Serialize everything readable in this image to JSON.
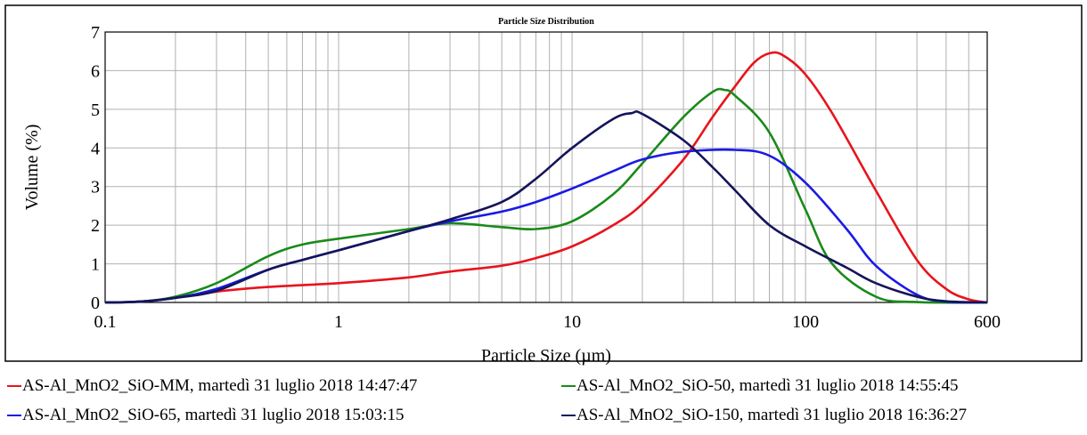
{
  "chart_data": {
    "type": "line",
    "title": "Particle Size Distribution",
    "xlabel": "Particle Size (µm)",
    "ylabel": "Volume (%)",
    "xscale": "log",
    "xlim": [
      0.1,
      600
    ],
    "ylim": [
      0,
      7
    ],
    "x_ticks": [
      0.1,
      1,
      10,
      100,
      600
    ],
    "x_tick_labels": [
      "0.1",
      "1",
      "10",
      "100",
      "600"
    ],
    "y_ticks": [
      0,
      1,
      2,
      3,
      4,
      5,
      6,
      7
    ],
    "y_tick_labels": [
      "0",
      "1",
      "2",
      "3",
      "4",
      "5",
      "6",
      "7"
    ],
    "grid": true,
    "legend_position": "bottom",
    "series": [
      {
        "name": "AS-Al_MnO2_SiO-MM, martedì 31 luglio 2018 14:47:47",
        "color": "#e8141c",
        "points": [
          [
            0.1,
            0
          ],
          [
            0.14,
            0.02
          ],
          [
            0.2,
            0.12
          ],
          [
            0.3,
            0.28
          ],
          [
            0.5,
            0.4
          ],
          [
            1,
            0.5
          ],
          [
            2,
            0.65
          ],
          [
            3,
            0.8
          ],
          [
            5,
            0.95
          ],
          [
            7,
            1.15
          ],
          [
            10,
            1.45
          ],
          [
            15,
            2.0
          ],
          [
            20,
            2.55
          ],
          [
            30,
            3.7
          ],
          [
            40,
            4.8
          ],
          [
            50,
            5.6
          ],
          [
            60,
            6.2
          ],
          [
            70,
            6.45
          ],
          [
            80,
            6.4
          ],
          [
            100,
            5.9
          ],
          [
            130,
            4.9
          ],
          [
            200,
            2.9
          ],
          [
            300,
            1.1
          ],
          [
            400,
            0.35
          ],
          [
            500,
            0.08
          ],
          [
            600,
            0
          ]
        ]
      },
      {
        "name": "AS-Al_MnO2_SiO-50, martedì 31 luglio 2018 14:55:45",
        "color": "#1a8a1a",
        "points": [
          [
            0.1,
            0
          ],
          [
            0.14,
            0.02
          ],
          [
            0.2,
            0.15
          ],
          [
            0.3,
            0.5
          ],
          [
            0.5,
            1.2
          ],
          [
            0.7,
            1.5
          ],
          [
            1,
            1.65
          ],
          [
            2,
            1.9
          ],
          [
            3,
            2.05
          ],
          [
            5,
            1.95
          ],
          [
            7,
            1.9
          ],
          [
            10,
            2.1
          ],
          [
            15,
            2.8
          ],
          [
            20,
            3.6
          ],
          [
            30,
            4.8
          ],
          [
            40,
            5.45
          ],
          [
            45,
            5.5
          ],
          [
            50,
            5.35
          ],
          [
            70,
            4.4
          ],
          [
            100,
            2.4
          ],
          [
            130,
            1.0
          ],
          [
            200,
            0.15
          ],
          [
            300,
            0.01
          ],
          [
            600,
            0
          ]
        ]
      },
      {
        "name": "AS-Al_MnO2_SiO-65, martedì 31 luglio 2018 15:03:15",
        "color": "#1a1ae6",
        "points": [
          [
            0.1,
            0
          ],
          [
            0.14,
            0.02
          ],
          [
            0.2,
            0.12
          ],
          [
            0.3,
            0.35
          ],
          [
            0.5,
            0.85
          ],
          [
            0.7,
            1.1
          ],
          [
            1,
            1.35
          ],
          [
            2,
            1.85
          ],
          [
            3,
            2.1
          ],
          [
            5,
            2.35
          ],
          [
            7,
            2.6
          ],
          [
            10,
            2.95
          ],
          [
            15,
            3.4
          ],
          [
            20,
            3.7
          ],
          [
            30,
            3.9
          ],
          [
            50,
            3.95
          ],
          [
            70,
            3.8
          ],
          [
            100,
            3.1
          ],
          [
            150,
            1.9
          ],
          [
            200,
            0.95
          ],
          [
            300,
            0.2
          ],
          [
            400,
            0.02
          ],
          [
            600,
            0
          ]
        ]
      },
      {
        "name": "AS-Al_MnO2_SiO-150, martedì 31 luglio 2018 16:36:27",
        "color": "#14145a",
        "points": [
          [
            0.1,
            0
          ],
          [
            0.14,
            0.02
          ],
          [
            0.2,
            0.12
          ],
          [
            0.3,
            0.3
          ],
          [
            0.5,
            0.85
          ],
          [
            0.7,
            1.1
          ],
          [
            1,
            1.35
          ],
          [
            2,
            1.85
          ],
          [
            3,
            2.15
          ],
          [
            5,
            2.6
          ],
          [
            7,
            3.2
          ],
          [
            10,
            4.0
          ],
          [
            15,
            4.75
          ],
          [
            18,
            4.9
          ],
          [
            20,
            4.88
          ],
          [
            30,
            4.2
          ],
          [
            40,
            3.5
          ],
          [
            50,
            2.9
          ],
          [
            70,
            2.0
          ],
          [
            100,
            1.45
          ],
          [
            150,
            0.9
          ],
          [
            200,
            0.5
          ],
          [
            300,
            0.15
          ],
          [
            400,
            0.03
          ],
          [
            600,
            0
          ]
        ]
      }
    ]
  },
  "legend": {
    "items": [
      {
        "label": "AS-Al_MnO2_SiO-MM, martedì 31 luglio 2018 14:47:47",
        "color": "#e8141c"
      },
      {
        "label": "AS-Al_MnO2_SiO-50, martedì 31 luglio 2018 14:55:45",
        "color": "#1a8a1a"
      },
      {
        "label": "AS-Al_MnO2_SiO-65, martedì 31 luglio 2018 15:03:15",
        "color": "#1a1ae6"
      },
      {
        "label": "AS-Al_MnO2_SiO-150, martedì 31 luglio 2018 16:36:27",
        "color": "#14145a"
      }
    ]
  }
}
